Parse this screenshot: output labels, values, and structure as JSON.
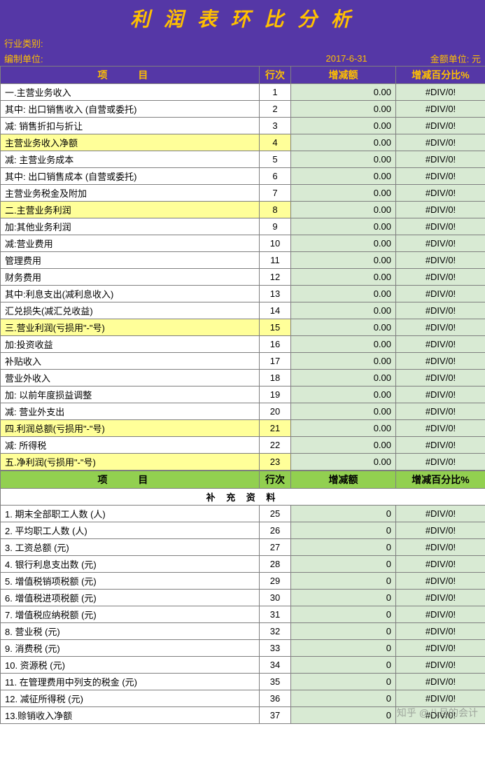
{
  "title": "利 润 表 环 比 分 析",
  "meta": {
    "industry_label": "行业类别:",
    "unit_label": "编制单位:",
    "date": "2017-6-31",
    "currency_label": "金额单位:  元"
  },
  "main_headers": {
    "item": "项   目",
    "row_no": "行次",
    "change_amount": "增减额",
    "change_pct": "增减百分比%"
  },
  "main_rows": [
    {
      "label": "一.主营业务收入",
      "no": "1",
      "amt": "0.00",
      "pct": "#DIV/0!",
      "hl": false,
      "indent": 0
    },
    {
      "label": "  其中: 出口销售收入 (自营或委托)",
      "no": "2",
      "amt": "0.00",
      "pct": "#DIV/0!",
      "hl": false,
      "indent": 1
    },
    {
      "label": "  减: 销售折扣与折让",
      "no": "3",
      "amt": "0.00",
      "pct": "#DIV/0!",
      "hl": false,
      "indent": 1
    },
    {
      "label": "  主营业务收入净额",
      "no": "4",
      "amt": "0.00",
      "pct": "#DIV/0!",
      "hl": true,
      "indent": 1
    },
    {
      "label": "   减: 主营业务成本",
      "no": "5",
      "amt": "0.00",
      "pct": "#DIV/0!",
      "hl": false,
      "indent": 2
    },
    {
      "label": "      其中: 出口销售成本 (自营或委托)",
      "no": "6",
      "amt": "0.00",
      "pct": "#DIV/0!",
      "hl": false,
      "indent": 3
    },
    {
      "label": "     主营业务税金及附加",
      "no": "7",
      "amt": "0.00",
      "pct": "#DIV/0!",
      "hl": false,
      "indent": 2
    },
    {
      "label": "二.主营业务利润",
      "no": "8",
      "amt": "0.00",
      "pct": "#DIV/0!",
      "hl": true,
      "indent": 0
    },
    {
      "label": "  加:其他业务利润",
      "no": "9",
      "amt": "0.00",
      "pct": "#DIV/0!",
      "hl": false,
      "indent": 1
    },
    {
      "label": "  减:营业费用",
      "no": "10",
      "amt": "0.00",
      "pct": "#DIV/0!",
      "hl": false,
      "indent": 1
    },
    {
      "label": "  管理费用",
      "no": "11",
      "amt": "0.00",
      "pct": "#DIV/0!",
      "hl": false,
      "indent": 1
    },
    {
      "label": "  财务费用",
      "no": "12",
      "amt": "0.00",
      "pct": "#DIV/0!",
      "hl": false,
      "indent": 1
    },
    {
      "label": "   其中:利息支出(减利息收入)",
      "no": "13",
      "amt": "0.00",
      "pct": "#DIV/0!",
      "hl": false,
      "indent": 2
    },
    {
      "label": "  汇兑损失(减汇兑收益)",
      "no": "14",
      "amt": "0.00",
      "pct": "#DIV/0!",
      "hl": false,
      "indent": 1
    },
    {
      "label": "三.营业利润(亏损用\"-\"号)",
      "no": "15",
      "amt": "0.00",
      "pct": "#DIV/0!",
      "hl": true,
      "indent": 0
    },
    {
      "label": "  加:投资收益",
      "no": "16",
      "amt": "0.00",
      "pct": "#DIV/0!",
      "hl": false,
      "indent": 1
    },
    {
      "label": "  补贴收入",
      "no": "17",
      "amt": "0.00",
      "pct": "#DIV/0!",
      "hl": false,
      "indent": 1
    },
    {
      "label": "  营业外收入",
      "no": "18",
      "amt": "0.00",
      "pct": "#DIV/0!",
      "hl": false,
      "indent": 1
    },
    {
      "label": "  加: 以前年度损益调整",
      "no": "19",
      "amt": "0.00",
      "pct": "#DIV/0!",
      "hl": false,
      "indent": 1
    },
    {
      "label": "  减: 营业外支出",
      "no": "20",
      "amt": "0.00",
      "pct": "#DIV/0!",
      "hl": false,
      "indent": 1
    },
    {
      "label": "四.利润总额(亏损用\"-\"号)",
      "no": "21",
      "amt": "0.00",
      "pct": "#DIV/0!",
      "hl": true,
      "indent": 0
    },
    {
      "label": "  减: 所得税",
      "no": "22",
      "amt": "0.00",
      "pct": "#DIV/0!",
      "hl": false,
      "indent": 1
    },
    {
      "label": "五.净利润(亏损用\"-\"号)",
      "no": "23",
      "amt": "0.00",
      "pct": "#DIV/0!",
      "hl": true,
      "indent": 0
    }
  ],
  "supplement_title": "补  充   资 料",
  "supplement_headers": {
    "item": "项   目",
    "row_no": "行次",
    "change_amount": "增减额",
    "change_pct": "增减百分比%"
  },
  "supplement_rows": [
    {
      "label": "1. 期末全部职工人数 (人)",
      "no": "25",
      "amt": "0",
      "pct": "#DIV/0!"
    },
    {
      "label": "2. 平均职工人数 (人)",
      "no": "26",
      "amt": "0",
      "pct": "#DIV/0!"
    },
    {
      "label": "3. 工资总额 (元)",
      "no": "27",
      "amt": "0",
      "pct": "#DIV/0!"
    },
    {
      "label": "4. 银行利息支出数 (元)",
      "no": "28",
      "amt": "0",
      "pct": "#DIV/0!"
    },
    {
      "label": "5. 增值税销项税额 (元)",
      "no": "29",
      "amt": "0",
      "pct": "#DIV/0!"
    },
    {
      "label": "6. 增值税进项税额 (元)",
      "no": "30",
      "amt": "0",
      "pct": "#DIV/0!"
    },
    {
      "label": "7. 增值税应纳税额 (元)",
      "no": "31",
      "amt": "0",
      "pct": "#DIV/0!"
    },
    {
      "label": "8. 营业税 (元)",
      "no": "32",
      "amt": "0",
      "pct": "#DIV/0!"
    },
    {
      "label": "9. 消费税 (元)",
      "no": "33",
      "amt": "0",
      "pct": "#DIV/0!"
    },
    {
      "label": "10. 资源税 (元)",
      "no": "34",
      "amt": "0",
      "pct": "#DIV/0!"
    },
    {
      "label": "11. 在管理费用中列支的税金 (元)",
      "no": "35",
      "amt": "0",
      "pct": "#DIV/0!"
    },
    {
      "label": "12. 减征所得税 (元)",
      "no": "36",
      "amt": "0",
      "pct": "#DIV/0!"
    },
    {
      "label": "13.赊销收入净额",
      "no": "37",
      "amt": "0",
      "pct": "#DIV/0!"
    }
  ],
  "watermark": "知乎 @八月的会计",
  "colors": {
    "header_bg": "#5537a6",
    "header_fg": "#ffc000",
    "highlight_bg": "#ffff99",
    "green_cell": "#d8ead3",
    "green_header": "#92d050",
    "border": "#7f7f7f"
  }
}
